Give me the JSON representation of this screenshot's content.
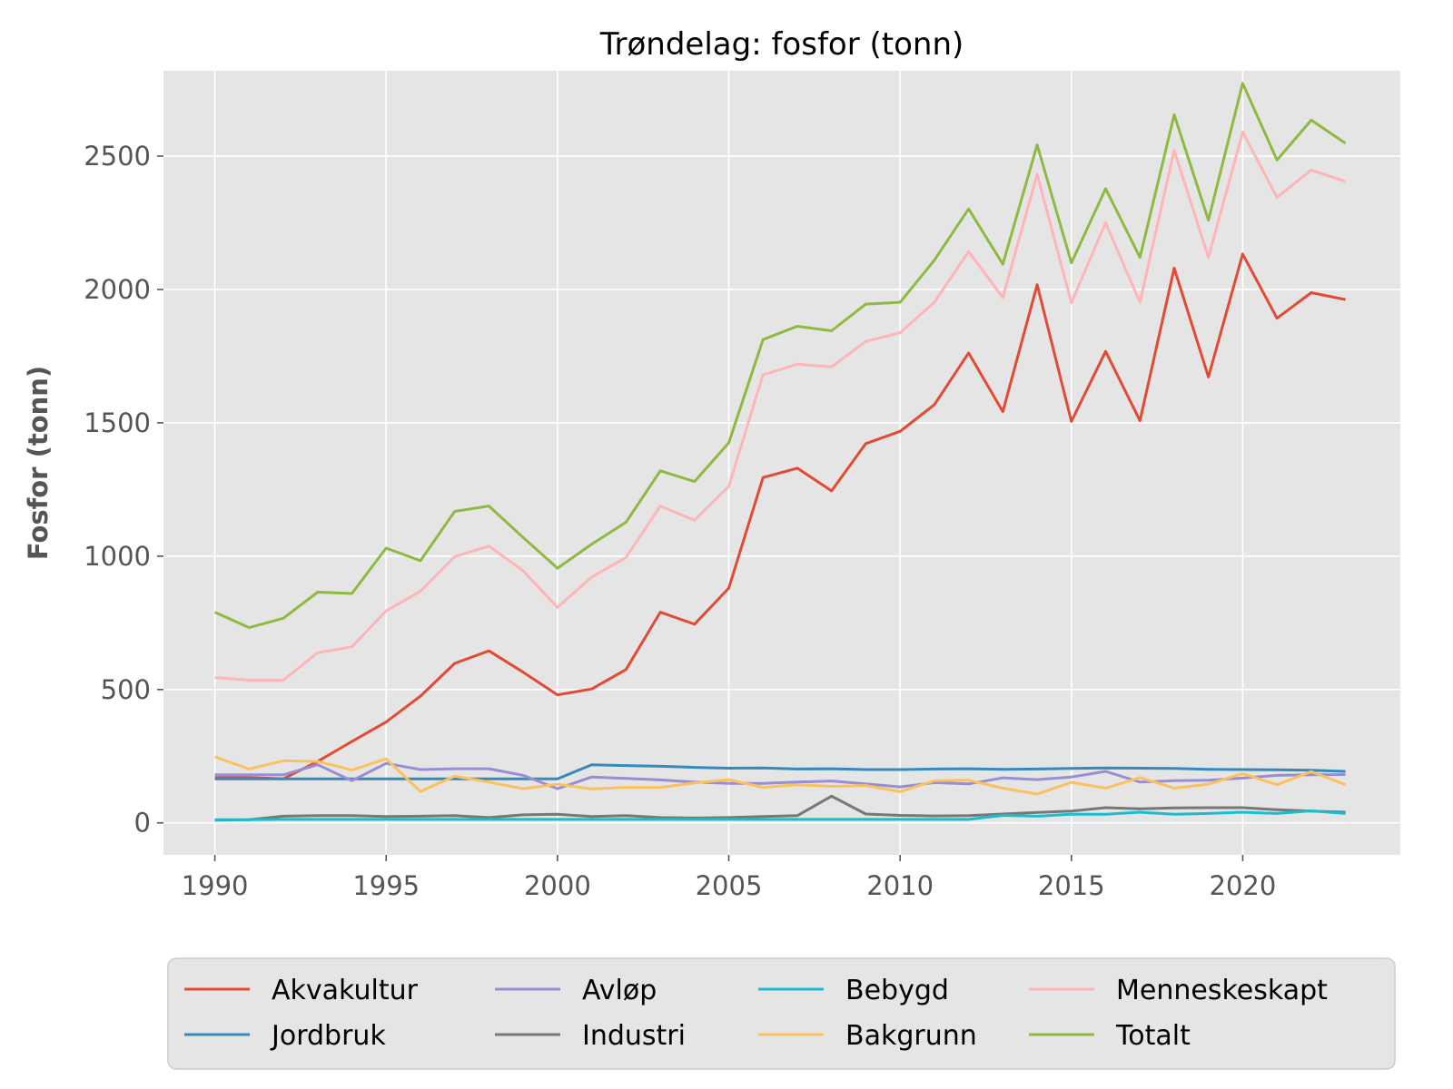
{
  "chart_data": {
    "type": "line",
    "title": "Trøndelag: fosfor (tonn)",
    "xlabel": "",
    "ylabel": "Fosfor (tonn)",
    "xlim": [
      1988.5,
      2024.6
    ],
    "ylim": [
      -120,
      2820
    ],
    "xticks": [
      1990,
      1995,
      2000,
      2005,
      2010,
      2015,
      2020
    ],
    "yticks": [
      0,
      500,
      1000,
      1500,
      2000,
      2500
    ],
    "grid": true,
    "legend_position": "bottom",
    "legend_columns": 4,
    "background": "#e5e5e5",
    "x": [
      1990,
      1991,
      1992,
      1993,
      1994,
      1995,
      1996,
      1997,
      1998,
      1999,
      2000,
      2001,
      2002,
      2003,
      2004,
      2005,
      2006,
      2007,
      2008,
      2009,
      2010,
      2011,
      2012,
      2013,
      2014,
      2015,
      2016,
      2017,
      2018,
      2019,
      2020,
      2021,
      2022,
      2023
    ],
    "series": [
      {
        "name": "Akvakultur",
        "color": "#e24a33",
        "values": [
          170,
          170,
          165,
          230,
          305,
          378,
          475,
          598,
          645,
          565,
          480,
          502,
          575,
          790,
          745,
          880,
          1295,
          1330,
          1245,
          1422,
          1468,
          1568,
          1762,
          1542,
          2018,
          1505,
          1768,
          1508,
          2080,
          1672,
          2133,
          1892,
          1988,
          1962
        ]
      },
      {
        "name": "Jordbruk",
        "color": "#348abd",
        "values": [
          165,
          165,
          165,
          165,
          165,
          165,
          165,
          165,
          165,
          165,
          165,
          218,
          215,
          212,
          208,
          205,
          206,
          202,
          203,
          200,
          200,
          202,
          203,
          201,
          202,
          204,
          206,
          205,
          204,
          201,
          200,
          199,
          197,
          193
        ]
      },
      {
        "name": "Avløp",
        "color": "#988ed5",
        "values": [
          180,
          180,
          180,
          218,
          158,
          223,
          200,
          203,
          203,
          178,
          128,
          172,
          167,
          161,
          153,
          148,
          148,
          153,
          157,
          146,
          135,
          151,
          146,
          169,
          162,
          172,
          193,
          153,
          158,
          160,
          168,
          178,
          180,
          181
        ]
      },
      {
        "name": "Industri",
        "color": "#777777",
        "values": [
          10,
          12,
          25,
          27,
          27,
          24,
          25,
          27,
          20,
          30,
          32,
          24,
          27,
          20,
          18,
          20,
          24,
          27,
          100,
          33,
          28,
          26,
          27,
          33,
          39,
          44,
          57,
          53,
          56,
          57,
          57,
          49,
          44,
          40
        ]
      },
      {
        "name": "Bebygd",
        "color": "#17becf",
        "values": [
          12,
          12,
          13,
          13,
          13,
          13,
          13,
          13,
          13,
          13,
          13,
          13,
          13,
          13,
          13,
          13,
          13,
          13,
          13,
          13,
          13,
          13,
          13,
          28,
          25,
          32,
          32,
          40,
          32,
          35,
          40,
          35,
          45,
          35
        ]
      },
      {
        "name": "Bakgrunn",
        "color": "#fbc15e",
        "values": [
          248,
          202,
          233,
          230,
          198,
          240,
          118,
          175,
          153,
          128,
          145,
          127,
          133,
          133,
          150,
          162,
          133,
          143,
          137,
          140,
          117,
          158,
          160,
          130,
          108,
          152,
          130,
          170,
          130,
          145,
          185,
          143,
          192,
          143
        ]
      },
      {
        "name": "Menneskeskapt",
        "color": "#ffb5b8",
        "values": [
          545,
          535,
          535,
          638,
          660,
          795,
          868,
          998,
          1038,
          945,
          808,
          922,
          995,
          1188,
          1135,
          1262,
          1680,
          1720,
          1710,
          1805,
          1838,
          1952,
          2142,
          1970,
          2432,
          1950,
          2250,
          1952,
          2522,
          2120,
          2590,
          2345,
          2448,
          2405
        ]
      },
      {
        "name": "Totalt",
        "color": "#8eba42",
        "values": [
          790,
          732,
          767,
          865,
          860,
          1030,
          983,
          1168,
          1188,
          1070,
          955,
          1045,
          1127,
          1320,
          1280,
          1425,
          1812,
          1862,
          1845,
          1945,
          1952,
          2110,
          2302,
          2095,
          2542,
          2100,
          2378,
          2120,
          2655,
          2260,
          2773,
          2485,
          2635,
          2548
        ]
      }
    ]
  }
}
